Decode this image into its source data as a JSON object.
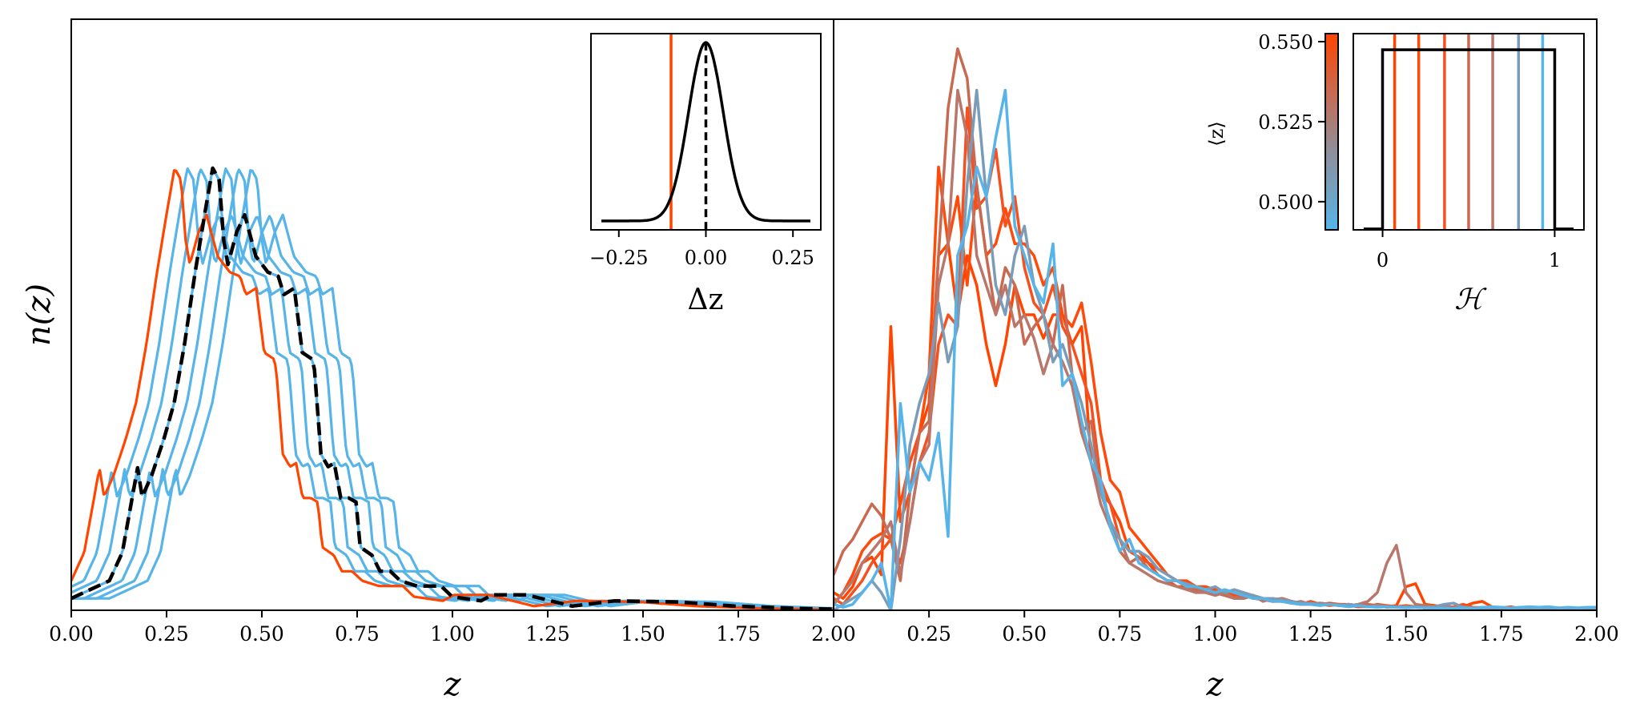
{
  "chart_data": [
    {
      "type": "line",
      "panel": "left-main",
      "xlabel": "z",
      "ylabel": "n(z)",
      "xlim": [
        0,
        2
      ],
      "ylim": [
        0,
        1
      ],
      "grid": false,
      "xticks": [
        0,
        0.25,
        0.5,
        0.75,
        1.0,
        1.25,
        1.5,
        1.75,
        2.0
      ],
      "xtick_labels": [
        "0.00",
        "0.25",
        "0.50",
        "0.75",
        "1.00",
        "1.25",
        "1.50",
        "1.75",
        "2.00"
      ],
      "truth": {
        "color": "#000000",
        "style": "dashed",
        "x": [
          0,
          0.1,
          0.134,
          0.174,
          0.186,
          0.211,
          0.243,
          0.27,
          0.297,
          0.325,
          0.352,
          0.371,
          0.388,
          0.4,
          0.411,
          0.434,
          0.455,
          0.484,
          0.516,
          0.543,
          0.558,
          0.585,
          0.606,
          0.632,
          0.638,
          0.655,
          0.674,
          0.69,
          0.707,
          0.728,
          0.747,
          0.758,
          0.789,
          0.81,
          0.837,
          0.863,
          0.907,
          0.97,
          0.999,
          1.075,
          1.104,
          1.195,
          1.314,
          1.426,
          1.594,
          1.74,
          1.91,
          2.1
        ],
        "y": [
          0.02,
          0.05,
          0.098,
          0.241,
          0.192,
          0.228,
          0.29,
          0.351,
          0.45,
          0.572,
          0.678,
          0.748,
          0.728,
          0.626,
          0.585,
          0.64,
          0.669,
          0.599,
          0.572,
          0.565,
          0.534,
          0.545,
          0.436,
          0.425,
          0.407,
          0.264,
          0.243,
          0.249,
          0.19,
          0.19,
          0.183,
          0.107,
          0.093,
          0.066,
          0.066,
          0.05,
          0.041,
          0.041,
          0.023,
          0.016,
          0.026,
          0.026,
          0.007,
          0.016,
          0.014,
          0.007,
          0.003,
          0.001
        ]
      },
      "shifted_series": [
        {
          "shift": -0.0667,
          "color": "#56B4E9"
        },
        {
          "shift": -0.0333,
          "color": "#56B4E9"
        },
        {
          "shift": 0.0,
          "color": "#56B4E9"
        },
        {
          "shift": 0.0333,
          "color": "#56B4E9"
        },
        {
          "shift": 0.0667,
          "color": "#56B4E9"
        },
        {
          "shift": 0.1,
          "color": "#56B4E9"
        },
        {
          "shift": -0.1,
          "color": "#FF4500"
        }
      ]
    },
    {
      "type": "line",
      "panel": "left-inset",
      "xlabel": "Δz",
      "xlim": [
        -0.33,
        0.33
      ],
      "ylim": [
        -0.05,
        1.05
      ],
      "xticks": [
        -0.25,
        0,
        0.25
      ],
      "xtick_labels": [
        "−0.25",
        "0.00",
        "0.25"
      ],
      "gaussian": {
        "mean": 0.0,
        "sigma": 0.05,
        "range": [
          -0.3,
          0.3
        ],
        "color": "#000000"
      },
      "vlines": [
        {
          "x": 0.0,
          "color": "#000000",
          "style": "dashed"
        },
        {
          "x": -0.1,
          "color": "#FF4500",
          "style": "solid"
        }
      ]
    },
    {
      "type": "line",
      "panel": "right-main",
      "xlabel": "z",
      "xlim": [
        0,
        2
      ],
      "ylim": [
        0,
        1
      ],
      "grid": false,
      "xticks": [
        0.25,
        0.5,
        0.75,
        1.0,
        1.25,
        1.5,
        1.75,
        2.0
      ],
      "xtick_labels": [
        "0.25",
        "0.50",
        "0.75",
        "1.00",
        "1.25",
        "1.50",
        "1.75",
        "2.00"
      ],
      "x_start": 0,
      "x_step": 0.025,
      "series": [
        {
          "color": "#FF4500",
          "values": [
            0.03,
            0.02,
            0.04,
            0.08,
            0.09,
            0.06,
            0.48,
            0.15,
            0.2,
            0.3,
            0.35,
            0.6,
            0.62,
            0.5,
            0.6,
            0.55,
            0.45,
            0.38,
            0.45,
            0.55,
            0.5,
            0.5,
            0.46,
            0.5,
            0.5,
            0.45,
            0.48,
            0.25,
            0.2,
            0.18,
            0.15,
            0.1,
            0.1,
            0.08,
            0.06,
            0.05,
            0.04,
            0.04,
            0.03,
            0.035,
            0.03,
            0.025,
            0.03,
            0.02,
            0.025,
            0.02,
            0.015,
            0.02,
            0.015,
            0.01,
            0.015,
            0.01,
            0.012,
            0.01,
            0.01,
            0.008,
            0.01,
            0.008,
            0.006,
            0.008,
            0.04,
            0.045,
            0.01,
            0.008,
            0.006,
            0.005,
            0.006,
            0.012,
            0.015,
            0.006,
            0.004,
            0.003,
            0.004,
            0.003,
            0.002,
            0.003,
            0.002,
            0.003,
            0.002,
            0.003,
            0.002
          ]
        },
        {
          "color": "#FF4A0A",
          "values": [
            0.01,
            0.03,
            0.06,
            0.1,
            0.12,
            0.13,
            0.12,
            0.18,
            0.25,
            0.3,
            0.4,
            0.75,
            0.62,
            0.7,
            0.55,
            0.72,
            0.6,
            0.62,
            0.68,
            0.62,
            0.62,
            0.6,
            0.55,
            0.58,
            0.5,
            0.48,
            0.52,
            0.42,
            0.3,
            0.22,
            0.2,
            0.14,
            0.12,
            0.1,
            0.08,
            0.06,
            0.05,
            0.05,
            0.04,
            0.04,
            0.035,
            0.03,
            0.025,
            0.03,
            0.02,
            0.02,
            0.018,
            0.02,
            0.015,
            0.012,
            0.01,
            0.012,
            0.01,
            0.008,
            0.01,
            0.008,
            0.006,
            0.01,
            0.008,
            0.006,
            0.008,
            0.006,
            0.005,
            0.006,
            0.004,
            0.006,
            0.01,
            0.005,
            0.004,
            0.003,
            0.004,
            0.006,
            0.003,
            0.002,
            0.003,
            0.002,
            0.004,
            0.002,
            0.003,
            0.002,
            0.002
          ]
        },
        {
          "color": "#F5501E",
          "values": [
            0.02,
            0.01,
            0.03,
            0.05,
            0.08,
            0.1,
            0.12,
            0.08,
            0.15,
            0.25,
            0.3,
            0.45,
            0.5,
            0.48,
            0.85,
            0.68,
            0.7,
            0.78,
            0.65,
            0.7,
            0.58,
            0.52,
            0.5,
            0.55,
            0.48,
            0.45,
            0.4,
            0.35,
            0.22,
            0.18,
            0.12,
            0.1,
            0.09,
            0.08,
            0.07,
            0.06,
            0.05,
            0.04,
            0.04,
            0.03,
            0.03,
            0.03,
            0.02,
            0.025,
            0.02,
            0.02,
            0.015,
            0.015,
            0.012,
            0.01,
            0.01,
            0.01,
            0.008,
            0.01,
            0.008,
            0.006,
            0.006,
            0.008,
            0.005,
            0.006,
            0.005,
            0.006,
            0.004,
            0.005,
            0.004,
            0.006,
            0.004,
            0.003,
            0.004,
            0.003,
            0.003,
            0.002,
            0.003,
            0.002,
            0.002,
            0.003,
            0.002,
            0.002,
            0.003,
            0.002,
            0.002
          ]
        },
        {
          "color": "#C86A52",
          "values": [
            0.06,
            0.1,
            0.12,
            0.15,
            0.18,
            0.16,
            0.12,
            0.05,
            0.2,
            0.3,
            0.32,
            0.6,
            0.85,
            0.95,
            0.9,
            0.72,
            0.6,
            0.5,
            0.58,
            0.55,
            0.45,
            0.48,
            0.5,
            0.45,
            0.55,
            0.4,
            0.3,
            0.32,
            0.2,
            0.15,
            0.1,
            0.08,
            0.09,
            0.07,
            0.06,
            0.05,
            0.05,
            0.04,
            0.035,
            0.03,
            0.03,
            0.025,
            0.02,
            0.025,
            0.02,
            0.018,
            0.015,
            0.02,
            0.015,
            0.012,
            0.01,
            0.012,
            0.01,
            0.008,
            0.01,
            0.008,
            0.01,
            0.006,
            0.008,
            0.006,
            0.005,
            0.006,
            0.004,
            0.005,
            0.006,
            0.004,
            0.005,
            0.004,
            0.003,
            0.004,
            0.003,
            0.004,
            0.003,
            0.002,
            0.003,
            0.002,
            0.002,
            0.003,
            0.002,
            0.002,
            0.002
          ]
        },
        {
          "color": "#B9766A",
          "values": [
            0.01,
            0.03,
            0.05,
            0.08,
            0.1,
            0.12,
            0.15,
            0.06,
            0.15,
            0.25,
            0.28,
            0.55,
            0.62,
            0.88,
            0.8,
            0.6,
            0.55,
            0.5,
            0.55,
            0.48,
            0.5,
            0.46,
            0.4,
            0.45,
            0.42,
            0.38,
            0.3,
            0.25,
            0.18,
            0.14,
            0.12,
            0.08,
            0.07,
            0.06,
            0.05,
            0.045,
            0.04,
            0.035,
            0.03,
            0.03,
            0.025,
            0.03,
            0.02,
            0.02,
            0.025,
            0.015,
            0.02,
            0.015,
            0.012,
            0.015,
            0.01,
            0.012,
            0.01,
            0.01,
            0.008,
            0.01,
            0.015,
            0.03,
            0.08,
            0.11,
            0.03,
            0.01,
            0.008,
            0.006,
            0.008,
            0.005,
            0.006,
            0.004,
            0.005,
            0.004,
            0.003,
            0.004,
            0.003,
            0.003,
            0.002,
            0.003,
            0.002,
            0.002,
            0.003,
            0.002,
            0.002
          ]
        },
        {
          "color": "#7B9CB8",
          "values": [
            0.0,
            0.01,
            0.02,
            0.03,
            0.05,
            0.03,
            0.0,
            0.12,
            0.28,
            0.35,
            0.4,
            0.52,
            0.42,
            0.48,
            0.72,
            0.88,
            0.7,
            0.55,
            0.5,
            0.6,
            0.65,
            0.55,
            0.5,
            0.42,
            0.45,
            0.4,
            0.35,
            0.28,
            0.2,
            0.15,
            0.12,
            0.1,
            0.1,
            0.09,
            0.07,
            0.06,
            0.05,
            0.045,
            0.04,
            0.035,
            0.04,
            0.03,
            0.035,
            0.03,
            0.025,
            0.02,
            0.02,
            0.018,
            0.015,
            0.012,
            0.012,
            0.01,
            0.01,
            0.008,
            0.01,
            0.008,
            0.006,
            0.008,
            0.006,
            0.005,
            0.006,
            0.005,
            0.004,
            0.006,
            0.01,
            0.012,
            0.005,
            0.004,
            0.003,
            0.004,
            0.003,
            0.003,
            0.002,
            0.003,
            0.002,
            0.003,
            0.002,
            0.002,
            0.002,
            0.002,
            0.002
          ]
        },
        {
          "color": "#56B4E9",
          "values": [
            0.01,
            0.005,
            0.01,
            0.03,
            0.05,
            0.08,
            0.0,
            0.35,
            0.2,
            0.25,
            0.22,
            0.3,
            0.125,
            0.6,
            0.65,
            0.75,
            0.7,
            0.8,
            0.88,
            0.65,
            0.6,
            0.55,
            0.52,
            0.62,
            0.38,
            0.4,
            0.32,
            0.25,
            0.22,
            0.14,
            0.1,
            0.12,
            0.08,
            0.07,
            0.06,
            0.05,
            0.05,
            0.04,
            0.04,
            0.035,
            0.03,
            0.035,
            0.03,
            0.025,
            0.02,
            0.02,
            0.015,
            0.015,
            0.012,
            0.01,
            0.01,
            0.008,
            0.01,
            0.008,
            0.006,
            0.008,
            0.006,
            0.005,
            0.006,
            0.005,
            0.004,
            0.005,
            0.004,
            0.003,
            0.004,
            0.003,
            0.004,
            0.003,
            0.005,
            0.006,
            0.005,
            0.004,
            0.005,
            0.006,
            0.005,
            0.006,
            0.004,
            0.005,
            0.004,
            0.005,
            0.005
          ]
        }
      ]
    },
    {
      "type": "line",
      "panel": "right-inset",
      "xlabel": "ℋ",
      "xlim": [
        -0.17,
        1.17
      ],
      "ylim": [
        -0.005,
        1.09
      ],
      "xticks": [
        0,
        1
      ],
      "xtick_labels": [
        "0",
        "1"
      ],
      "tophat": {
        "x": [
          -0.11,
          0,
          0,
          1,
          1,
          1.11
        ],
        "y": [
          0,
          0,
          1,
          1,
          0,
          0
        ],
        "color": "#000000"
      },
      "vlines": [
        {
          "x": 0.07,
          "color": "#FF4500"
        },
        {
          "x": 0.21,
          "color": "#FF4A0A"
        },
        {
          "x": 0.36,
          "color": "#F5501E"
        },
        {
          "x": 0.5,
          "color": "#C86A52"
        },
        {
          "x": 0.64,
          "color": "#B9766A"
        },
        {
          "x": 0.79,
          "color": "#7B9CB8"
        },
        {
          "x": 0.93,
          "color": "#56B4E9"
        }
      ],
      "colorbar": {
        "label": "⟨z⟩",
        "lim": [
          0.4912,
          0.5525
        ],
        "ticks": [
          0.5,
          0.525,
          0.55
        ],
        "tick_labels": [
          "0.500",
          "0.525",
          "0.550"
        ],
        "colors": [
          "#56B4E9",
          "#8F8F9A",
          "#C86A52",
          "#FF4500"
        ]
      }
    }
  ]
}
